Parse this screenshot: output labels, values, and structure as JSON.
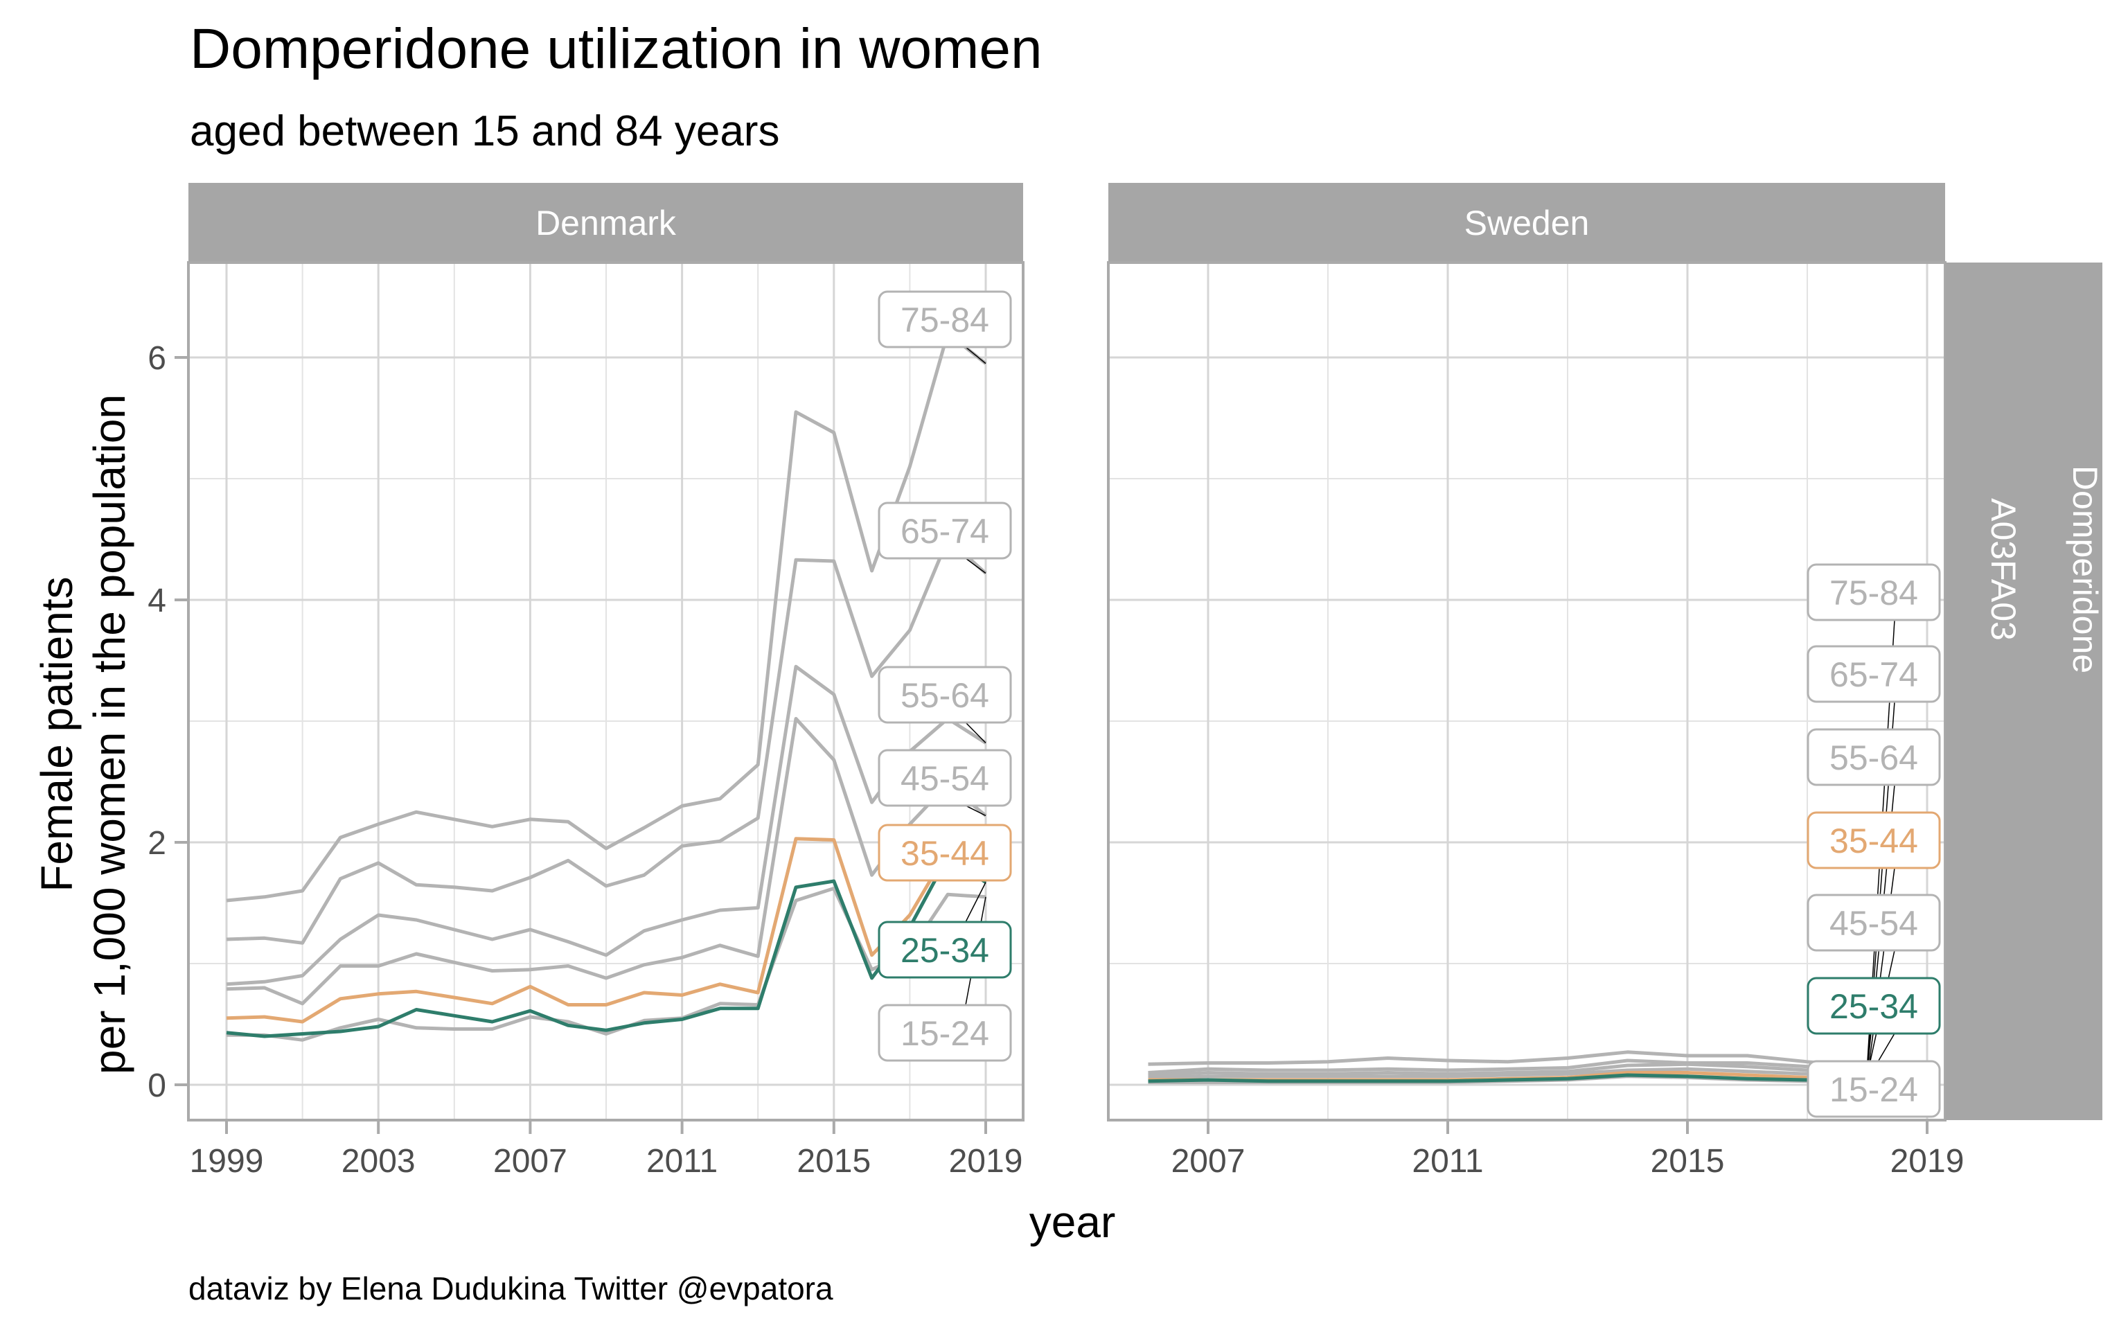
{
  "chart_data": {
    "type": "line",
    "title": "Domperidone utilization in women",
    "subtitle": "aged between 15 and 84 years",
    "xlabel": "year",
    "ylabel": [
      "Female patients",
      "per 1,000 women in the population"
    ],
    "caption": "dataviz by Elena Dudukina Twitter @evpatora",
    "row_strip": [
      "Domperidone",
      "A03FA03"
    ],
    "ylim": [
      -0.3,
      6.8
    ],
    "yticks": [
      0,
      2,
      4,
      6
    ],
    "grid": true,
    "colors": {
      "highlight_35_44": "#E3A872",
      "highlight_25_34": "#2E7D6B",
      "other": "#B3B3B3",
      "strip": "#A6A6A6"
    },
    "panels": [
      {
        "name": "Denmark",
        "xlim": [
          1998.2,
          2020.0
        ],
        "xticks": [
          1999,
          2003,
          2007,
          2011,
          2015,
          2019
        ],
        "x": [
          1999,
          2000,
          2001,
          2002,
          2003,
          2004,
          2005,
          2006,
          2007,
          2008,
          2009,
          2010,
          2011,
          2012,
          2013,
          2014,
          2015,
          2016,
          2017,
          2018,
          2019
        ],
        "series": [
          {
            "name": "75-84",
            "color": "#B3B3B3",
            "values": [
              1.52,
              1.55,
              1.6,
              2.04,
              2.15,
              2.25,
              2.19,
              2.13,
              2.19,
              2.17,
              1.95,
              2.12,
              2.3,
              2.36,
              2.64,
              5.55,
              5.38,
              4.24,
              5.1,
              6.2,
              5.95
            ]
          },
          {
            "name": "65-74",
            "color": "#B3B3B3",
            "values": [
              1.2,
              1.21,
              1.17,
              1.7,
              1.83,
              1.65,
              1.63,
              1.6,
              1.71,
              1.85,
              1.64,
              1.73,
              1.97,
              2.01,
              2.2,
              4.33,
              4.32,
              3.37,
              3.75,
              4.5,
              4.22
            ]
          },
          {
            "name": "55-64",
            "color": "#B3B3B3",
            "values": [
              0.83,
              0.85,
              0.9,
              1.2,
              1.4,
              1.36,
              1.28,
              1.2,
              1.28,
              1.18,
              1.07,
              1.27,
              1.36,
              1.44,
              1.46,
              3.45,
              3.22,
              2.33,
              2.75,
              3.02,
              2.82
            ]
          },
          {
            "name": "45-54",
            "color": "#B3B3B3",
            "values": [
              0.79,
              0.8,
              0.67,
              0.98,
              0.98,
              1.08,
              1.01,
              0.94,
              0.95,
              0.98,
              0.88,
              0.99,
              1.05,
              1.15,
              1.06,
              3.02,
              2.68,
              1.73,
              2.15,
              2.48,
              2.22
            ]
          },
          {
            "name": "15-24",
            "color": "#B3B3B3",
            "values": [
              0.41,
              0.41,
              0.37,
              0.47,
              0.54,
              0.47,
              0.46,
              0.46,
              0.56,
              0.52,
              0.42,
              0.53,
              0.55,
              0.67,
              0.66,
              1.52,
              1.62,
              0.95,
              1.1,
              1.57,
              1.55
            ]
          },
          {
            "name": "35-44",
            "color": "#E3A872",
            "values": [
              0.55,
              0.56,
              0.52,
              0.71,
              0.75,
              0.77,
              0.72,
              0.67,
              0.81,
              0.66,
              0.66,
              0.76,
              0.74,
              0.83,
              0.76,
              2.03,
              2.02,
              1.07,
              1.4,
              1.93,
              1.9
            ]
          },
          {
            "name": "25-34",
            "color": "#2E7D6B",
            "values": [
              0.43,
              0.4,
              0.42,
              0.44,
              0.48,
              0.62,
              0.57,
              0.52,
              0.61,
              0.49,
              0.45,
              0.51,
              0.54,
              0.63,
              0.63,
              1.63,
              1.68,
              0.88,
              1.3,
              1.88,
              1.67
            ]
          }
        ]
      },
      {
        "name": "Sweden",
        "xlim": [
          2005.3,
          2019.3
        ],
        "xticks": [
          2007,
          2011,
          2015,
          2019
        ],
        "x": [
          2006,
          2007,
          2008,
          2009,
          2010,
          2011,
          2012,
          2013,
          2014,
          2015,
          2016,
          2017,
          2018
        ],
        "series": [
          {
            "name": "75-84",
            "color": "#B3B3B3",
            "values": [
              0.17,
              0.18,
              0.18,
              0.19,
              0.22,
              0.2,
              0.19,
              0.22,
              0.27,
              0.24,
              0.24,
              0.19,
              0.15
            ]
          },
          {
            "name": "65-74",
            "color": "#B3B3B3",
            "values": [
              0.1,
              0.13,
              0.12,
              0.12,
              0.13,
              0.12,
              0.13,
              0.14,
              0.2,
              0.18,
              0.18,
              0.15,
              0.12
            ]
          },
          {
            "name": "55-64",
            "color": "#B3B3B3",
            "values": [
              0.08,
              0.1,
              0.09,
              0.09,
              0.1,
              0.09,
              0.1,
              0.11,
              0.16,
              0.17,
              0.15,
              0.12,
              0.1
            ]
          },
          {
            "name": "45-54",
            "color": "#B3B3B3",
            "values": [
              0.06,
              0.07,
              0.07,
              0.07,
              0.07,
              0.07,
              0.08,
              0.09,
              0.12,
              0.13,
              0.11,
              0.09,
              0.08
            ]
          },
          {
            "name": "15-24",
            "color": "#B3B3B3",
            "values": [
              0.02,
              0.02,
              0.02,
              0.02,
              0.02,
              0.02,
              0.03,
              0.04,
              0.07,
              0.06,
              0.04,
              0.03,
              0.02
            ]
          },
          {
            "name": "35-44",
            "color": "#E3A872",
            "values": [
              0.04,
              0.04,
              0.04,
              0.04,
              0.04,
              0.04,
              0.05,
              0.06,
              0.1,
              0.1,
              0.08,
              0.06,
              0.05
            ]
          },
          {
            "name": "25-34",
            "color": "#2E7D6B",
            "values": [
              0.03,
              0.04,
              0.03,
              0.03,
              0.03,
              0.03,
              0.04,
              0.05,
              0.08,
              0.07,
              0.05,
              0.04,
              0.04
            ]
          }
        ]
      }
    ],
    "labels": [
      "75-84",
      "65-74",
      "55-64",
      "45-54",
      "35-44",
      "25-34",
      "15-24"
    ],
    "sweden_label_order": [
      "75-84",
      "65-74",
      "55-64",
      "35-44",
      "45-54",
      "25-34",
      "15-24"
    ]
  }
}
